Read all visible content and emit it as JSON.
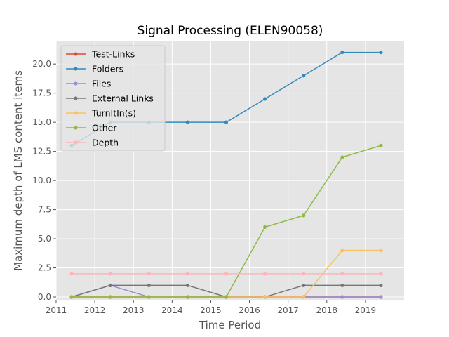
{
  "chart_data": {
    "type": "line",
    "title": "Signal Processing (ELEN90058)",
    "xlabel": "Time Period",
    "ylabel": "Maximum depth of LMS content items",
    "xlim": [
      2011,
      2020
    ],
    "ylim": [
      -0.3,
      22.0
    ],
    "x_ticks": [
      2011,
      2012,
      2013,
      2014,
      2015,
      2016,
      2017,
      2018,
      2019
    ],
    "y_ticks": [
      0.0,
      2.5,
      5.0,
      7.5,
      10.0,
      12.5,
      15.0,
      17.5,
      20.0
    ],
    "x_tick_labels": [
      "2011",
      "2012",
      "2013",
      "2014",
      "2015",
      "2016",
      "2017",
      "2018",
      "2019"
    ],
    "y_tick_labels": [
      "0.0",
      "2.5",
      "5.0",
      "7.5",
      "10.0",
      "12.5",
      "15.0",
      "17.5",
      "20.0"
    ],
    "x": [
      2011.4,
      2012.4,
      2013.4,
      2014.4,
      2015.4,
      2016.4,
      2017.4,
      2018.4,
      2019.4
    ],
    "grid": true,
    "legend_position": "top-left",
    "background": "#e5e5e5",
    "series": [
      {
        "name": "Test-Links",
        "color": "#e24a33",
        "values": [
          0,
          0,
          0,
          0,
          0,
          0,
          0,
          0,
          0
        ]
      },
      {
        "name": "Folders",
        "color": "#348abd",
        "values": [
          13,
          15,
          15,
          15,
          15,
          17,
          19,
          21,
          21
        ]
      },
      {
        "name": "Files",
        "color": "#988ed5",
        "values": [
          0,
          1,
          0,
          0,
          0,
          0,
          0,
          0,
          0
        ]
      },
      {
        "name": "External Links",
        "color": "#777777",
        "values": [
          0,
          1,
          1,
          1,
          0,
          0,
          1,
          1,
          1
        ]
      },
      {
        "name": "TurnItIn(s)",
        "color": "#fbc15e",
        "values": [
          0,
          0,
          0,
          0,
          0,
          0,
          0,
          4,
          4
        ]
      },
      {
        "name": "Other",
        "color": "#8eba42",
        "values": [
          0,
          0,
          0,
          0,
          0,
          6,
          7,
          12,
          13
        ]
      },
      {
        "name": "Depth",
        "color": "#ffb5b8",
        "values": [
          2,
          2,
          2,
          2,
          2,
          2,
          2,
          2,
          2
        ]
      }
    ]
  }
}
